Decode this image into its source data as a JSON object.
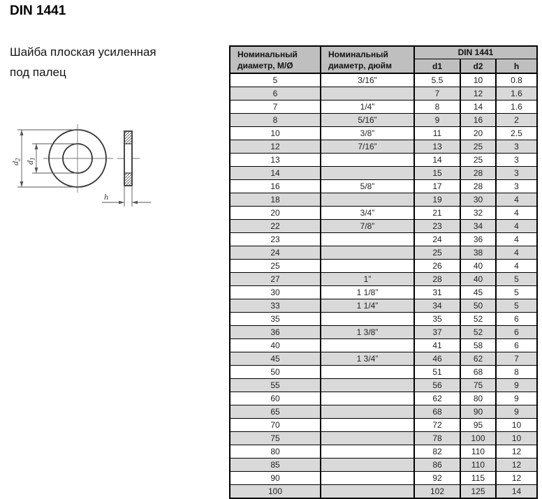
{
  "header": {
    "title": "DIN 1441",
    "subtitle_line1": "Шайба плоская усиленная",
    "subtitle_line2": "под палец"
  },
  "drawing": {
    "d2_label": {
      "base": "d",
      "sub": "2"
    },
    "d1_label": {
      "base": "d",
      "sub": "1"
    },
    "h_label": "h"
  },
  "table": {
    "col1_header": "Номинальный диаметр, М/Ø",
    "col2_header": "Номинальный диаметр, дюйм",
    "group_header": "DIN 1441",
    "sub_headers": [
      "d1",
      "d2",
      "h"
    ],
    "rows": [
      [
        "5",
        "3/16”",
        "5.5",
        "10",
        "0.8"
      ],
      [
        "6",
        "",
        "7",
        "12",
        "1.6"
      ],
      [
        "7",
        "1/4”",
        "8",
        "14",
        "1.6"
      ],
      [
        "8",
        "5/16”",
        "9",
        "16",
        "2"
      ],
      [
        "10",
        "3/8”",
        "11",
        "20",
        "2.5"
      ],
      [
        "12",
        "7/16”",
        "13",
        "25",
        "3"
      ],
      [
        "13",
        "",
        "14",
        "25",
        "3"
      ],
      [
        "14",
        "",
        "15",
        "28",
        "3"
      ],
      [
        "16",
        "5/8”",
        "17",
        "28",
        "3"
      ],
      [
        "18",
        "",
        "19",
        "30",
        "4"
      ],
      [
        "20",
        "3/4”",
        "21",
        "32",
        "4"
      ],
      [
        "22",
        "7/8”",
        "23",
        "34",
        "4"
      ],
      [
        "23",
        "",
        "24",
        "36",
        "4"
      ],
      [
        "24",
        "",
        "25",
        "38",
        "4"
      ],
      [
        "25",
        "",
        "26",
        "40",
        "4"
      ],
      [
        "27",
        "1”",
        "28",
        "40",
        "5"
      ],
      [
        "30",
        "1 1/8”",
        "31",
        "45",
        "5"
      ],
      [
        "33",
        "1 1/4”",
        "34",
        "50",
        "5"
      ],
      [
        "35",
        "",
        "35",
        "52",
        "6"
      ],
      [
        "36",
        "1 3/8”",
        "37",
        "52",
        "6"
      ],
      [
        "40",
        "",
        "41",
        "58",
        "6"
      ],
      [
        "45",
        "1 3/4”",
        "46",
        "62",
        "7"
      ],
      [
        "50",
        "",
        "51",
        "68",
        "8"
      ],
      [
        "55",
        "",
        "56",
        "75",
        "9"
      ],
      [
        "60",
        "",
        "62",
        "80",
        "9"
      ],
      [
        "65",
        "",
        "68",
        "90",
        "9"
      ],
      [
        "70",
        "",
        "72",
        "95",
        "10"
      ],
      [
        "75",
        "",
        "78",
        "100",
        "10"
      ],
      [
        "80",
        "",
        "82",
        "110",
        "12"
      ],
      [
        "85",
        "",
        "86",
        "110",
        "12"
      ],
      [
        "90",
        "",
        "92",
        "115",
        "12"
      ],
      [
        "100",
        "",
        "102",
        "125",
        "14"
      ]
    ]
  },
  "colors": {
    "header_bg": "#bfbfbf",
    "stripe_bg": "#d9d9d9",
    "border": "#000000"
  }
}
